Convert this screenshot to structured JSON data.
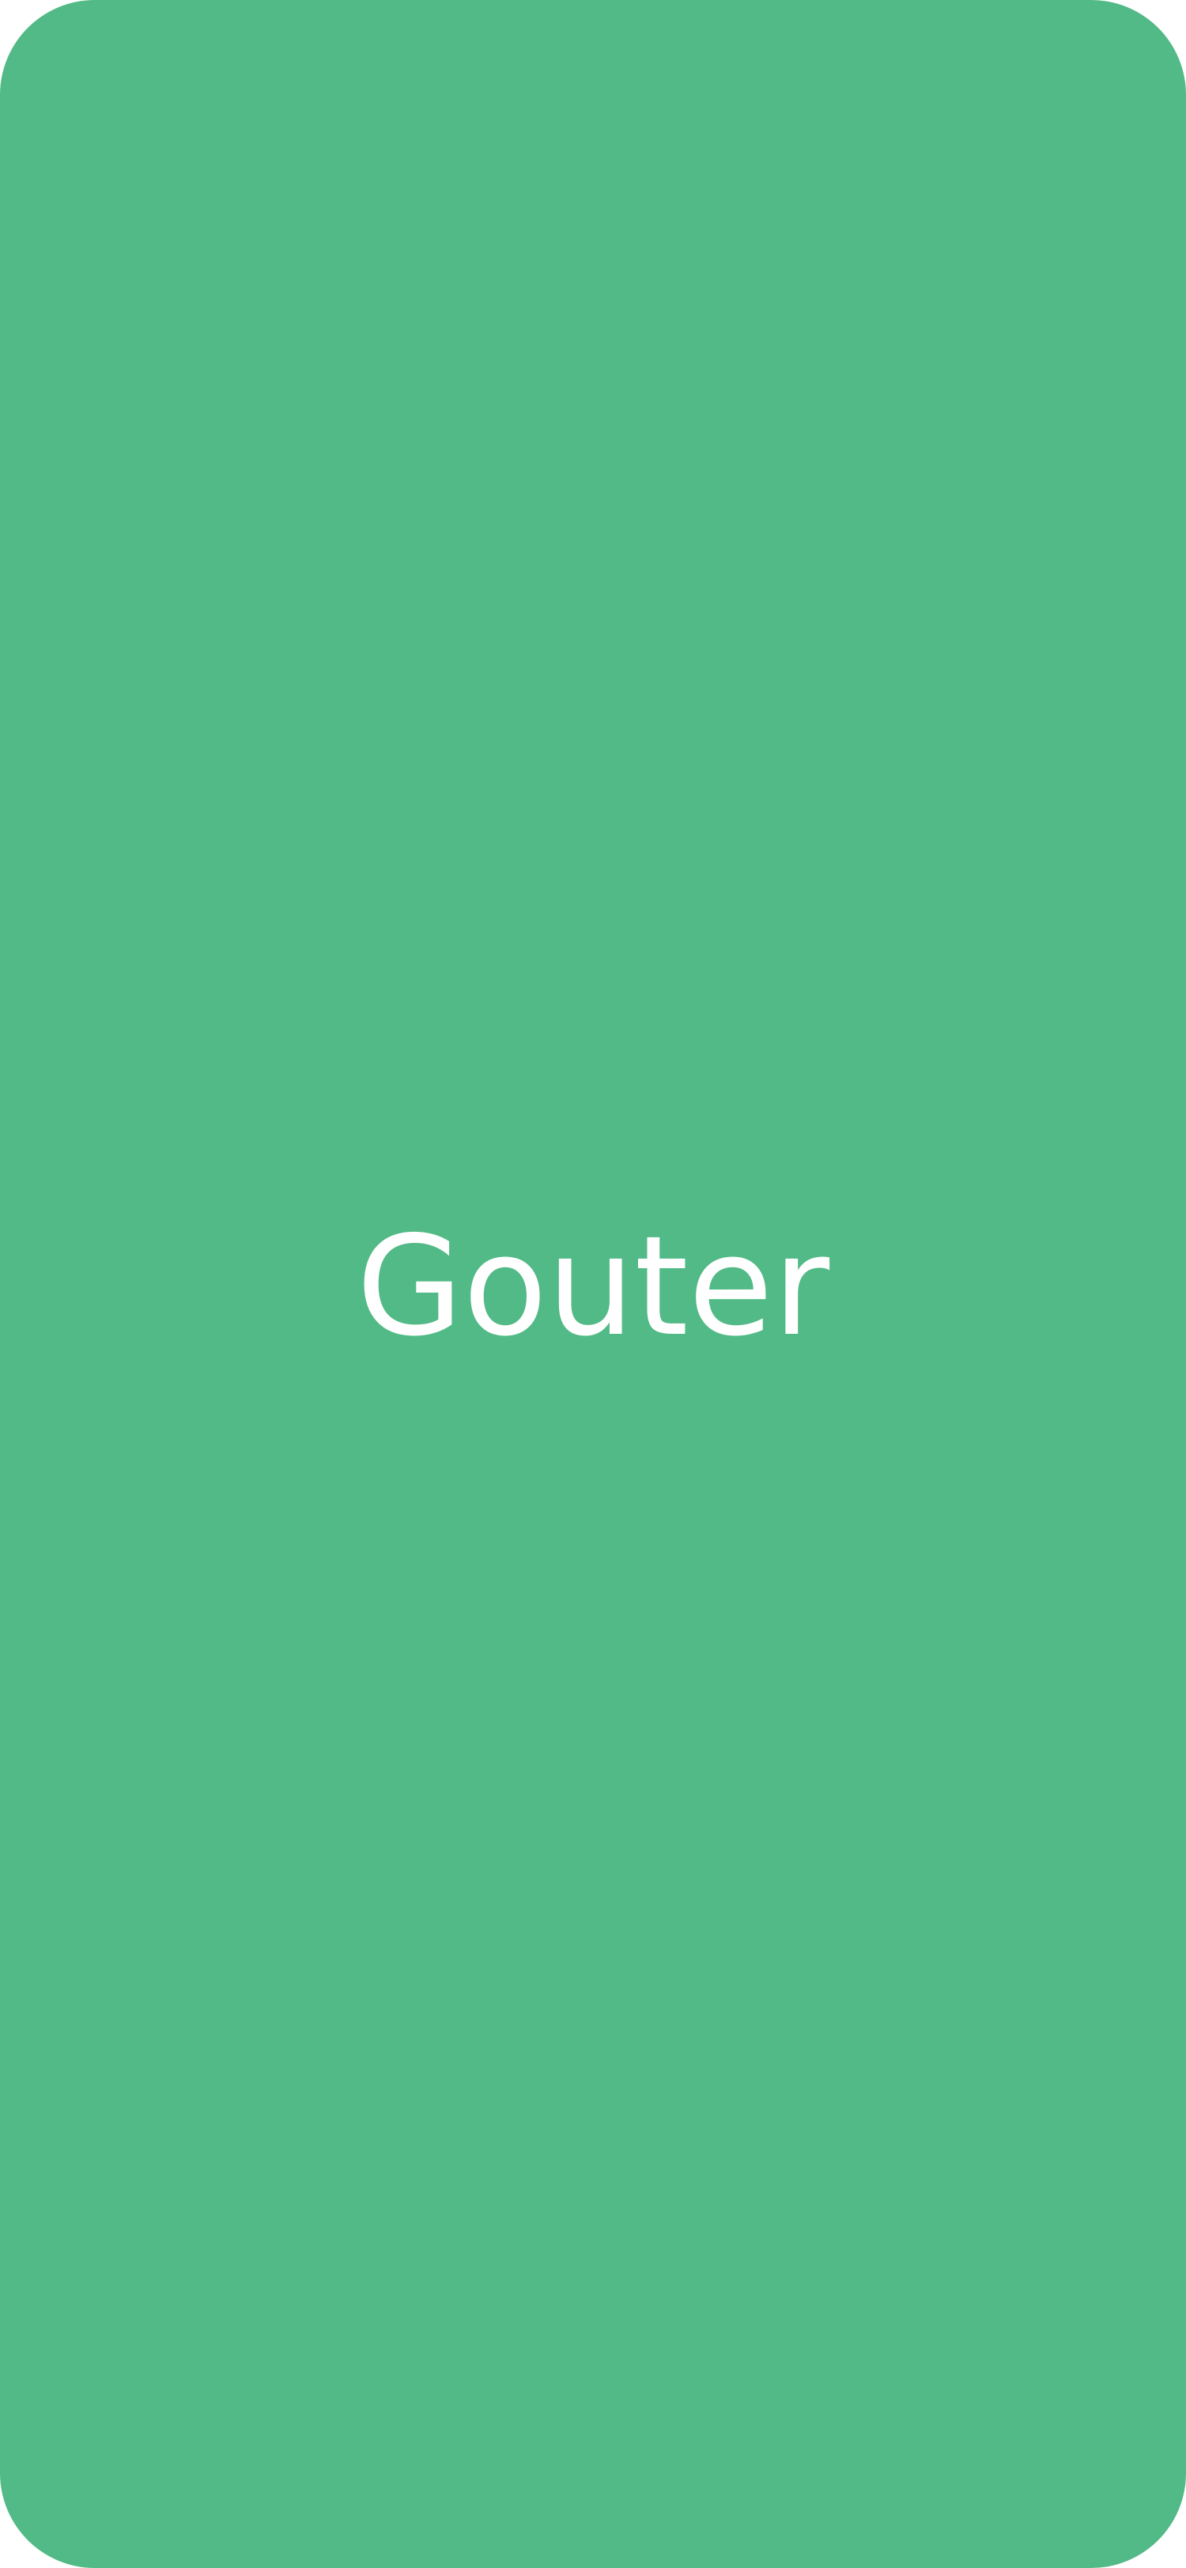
{
  "splash": {
    "app_name": "Gouter",
    "background_color": "#52BA86",
    "text_color": "#FFFFFF"
  }
}
